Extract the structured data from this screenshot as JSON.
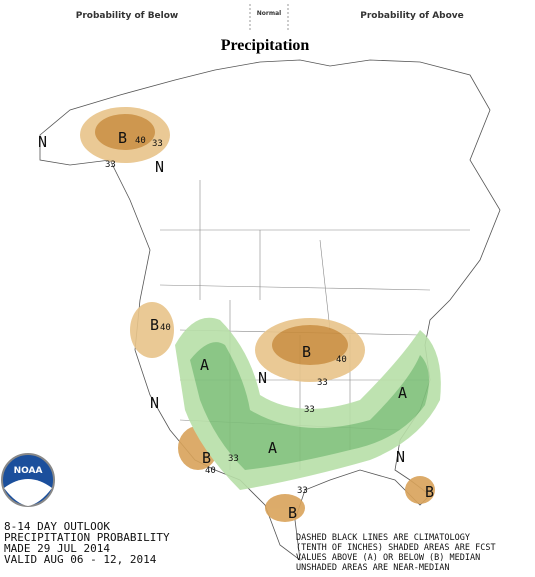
{
  "legend": {
    "below": "Probability of Below",
    "normal": "Normal",
    "above": "Probability of Above"
  },
  "title": "Precipitation",
  "logo": "NOAA",
  "map_labels": [
    {
      "text": "B"
    },
    {
      "text": "33"
    },
    {
      "text": "40"
    },
    {
      "text": "33"
    },
    {
      "text": "N"
    },
    {
      "text": "N"
    },
    {
      "text": "B"
    },
    {
      "text": "40"
    },
    {
      "text": "B"
    },
    {
      "text": "40"
    },
    {
      "text": "33"
    },
    {
      "text": "A"
    },
    {
      "text": "N"
    },
    {
      "text": "A"
    },
    {
      "text": "N"
    },
    {
      "text": "A"
    },
    {
      "text": "B"
    },
    {
      "text": "33"
    },
    {
      "text": "N"
    },
    {
      "text": "B"
    },
    {
      "text": "B"
    },
    {
      "text": "33"
    },
    {
      "text": "33"
    },
    {
      "text": "40"
    }
  ],
  "info": [
    "8-14 DAY OUTLOOK",
    "PRECIPITATION PROBABILITY",
    "MADE  29 JUL 2014",
    "VALID  AUG 06 - 12, 2014"
  ],
  "note": [
    "DASHED BLACK LINES ARE CLIMATOLOGY",
    "(TENTH OF INCHES) SHADED AREAS ARE FCST",
    "VALUES ABOVE (A) OR BELOW (B) MEDIAN",
    "UNSHADED AREAS ARE NEAR-MEDIAN"
  ]
}
